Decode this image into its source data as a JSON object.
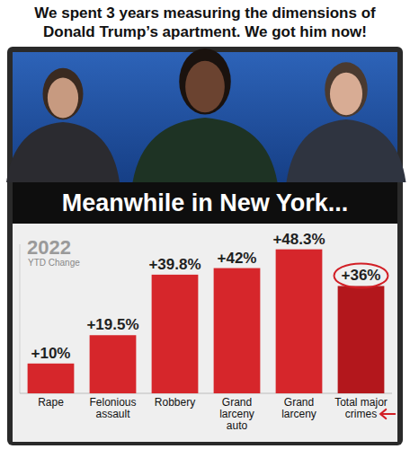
{
  "header": {
    "caption": "We spent 3 years measuring the dimensions of Donald Trump’s apartment. We got him now!",
    "banner": "Meanwhile in New York..."
  },
  "chart_data": {
    "type": "bar",
    "title": "2022",
    "subtitle": "YTD Change",
    "categories": [
      "Rape",
      "Felonious assault",
      "Robbery",
      "Grand larceny auto",
      "Grand larceny",
      "Total major crimes"
    ],
    "values": [
      10,
      19.5,
      39.8,
      42,
      48.3,
      36
    ],
    "value_labels": [
      "+10%",
      "+19.5%",
      "+39.8%",
      "+42%",
      "+48.3%",
      "+36%"
    ],
    "colors": [
      "#d6262b",
      "#d6262b",
      "#d6262b",
      "#d6262b",
      "#d6262b",
      "#b3171c"
    ],
    "ylim": [
      0,
      50
    ],
    "data_labels": true,
    "tick_labels": "x",
    "grid": false
  }
}
